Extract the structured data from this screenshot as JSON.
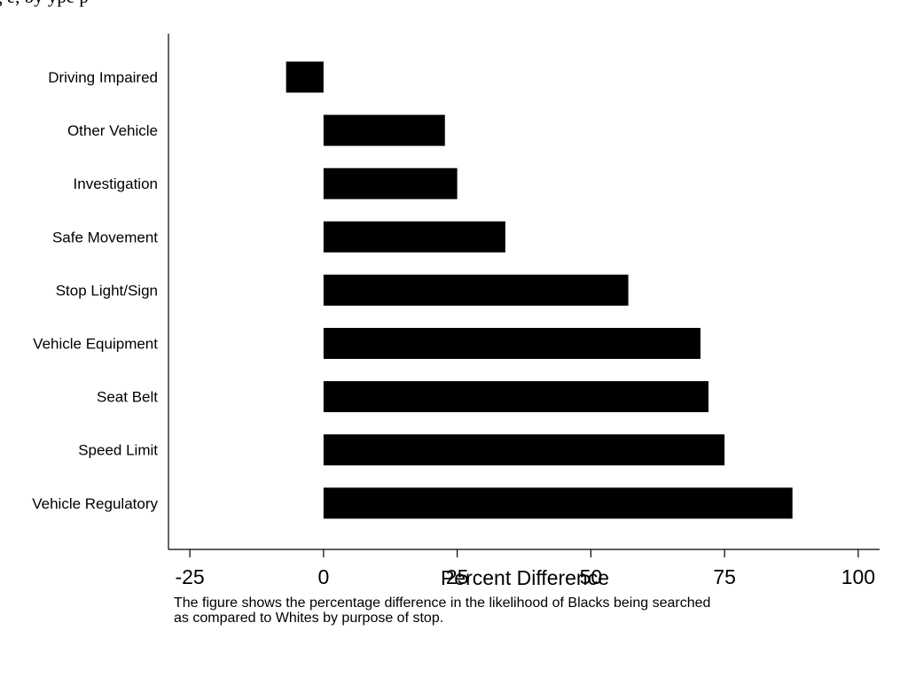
{
  "header": {
    "caption": "g                                                                                                    e, by                    ype        p"
  },
  "chart_data": {
    "type": "bar",
    "orientation": "horizontal",
    "categories": [
      "Driving Impaired",
      "Other Vehicle",
      "Investigation",
      "Safe Movement",
      "Stop Light/Sign",
      "Vehicle Equipment",
      "Seat Belt",
      "Speed Limit",
      "Vehicle Regulatory"
    ],
    "values": [
      -7,
      22.7,
      25,
      34,
      57,
      70.5,
      72,
      75,
      87.7
    ],
    "title": "",
    "xlabel": "Percent Difference",
    "ylabel": "",
    "xlim": [
      -29,
      104
    ],
    "xticks": [
      -25,
      0,
      25,
      50,
      75,
      100
    ],
    "xtick_labels": [
      "-25",
      "0",
      "25",
      "50",
      "75",
      "100"
    ],
    "bar_color": "#000000",
    "grid": false,
    "legend": "none"
  },
  "note": {
    "line1": "The figure shows the percentage difference in the likelihood of Blacks being searched",
    "line2": "as compared to Whites by purpose of stop."
  }
}
